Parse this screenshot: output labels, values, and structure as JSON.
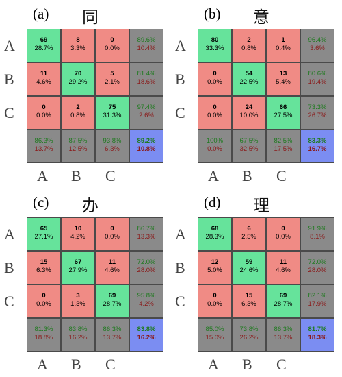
{
  "row_labels": [
    "A",
    "B",
    "C"
  ],
  "col_labels": [
    "A",
    "B",
    "C"
  ],
  "colors": {
    "correct": "#66e39b",
    "incorrect": "#f08b85",
    "summary": "#8a8a8a",
    "overall": "#7b8df2",
    "green_text": "#1f7a1f",
    "red_text": "#8a1a1a"
  },
  "chart_data": [
    {
      "type": "table",
      "panel_label": "(a)",
      "character": "同",
      "cells": [
        [
          {
            "n": "69",
            "p": "28.7%"
          },
          {
            "n": "8",
            "p": "3.3%"
          },
          {
            "n": "0",
            "p": "0.0%"
          },
          {
            "top": "89.6%",
            "bot": "10.4%"
          }
        ],
        [
          {
            "n": "11",
            "p": "4.6%"
          },
          {
            "n": "70",
            "p": "29.2%"
          },
          {
            "n": "5",
            "p": "2.1%"
          },
          {
            "top": "81.4%",
            "bot": "18.6%"
          }
        ],
        [
          {
            "n": "0",
            "p": "0.0%"
          },
          {
            "n": "2",
            "p": "0.8%"
          },
          {
            "n": "75",
            "p": "31.3%"
          },
          {
            "top": "97.4%",
            "bot": "2.6%"
          }
        ],
        [
          {
            "top": "86.3%",
            "bot": "13.7%"
          },
          {
            "top": "87.5%",
            "bot": "12.5%"
          },
          {
            "top": "93.8%",
            "bot": "6.3%"
          },
          {
            "top": "89.2%",
            "bot": "10.8%"
          }
        ]
      ]
    },
    {
      "type": "table",
      "panel_label": "(b)",
      "character": "意",
      "cells": [
        [
          {
            "n": "80",
            "p": "33.3%"
          },
          {
            "n": "2",
            "p": "0.8%"
          },
          {
            "n": "1",
            "p": "0.4%"
          },
          {
            "top": "96.4%",
            "bot": "3.6%"
          }
        ],
        [
          {
            "n": "0",
            "p": "0.0%"
          },
          {
            "n": "54",
            "p": "22.5%"
          },
          {
            "n": "13",
            "p": "5.4%"
          },
          {
            "top": "80.6%",
            "bot": "19.4%"
          }
        ],
        [
          {
            "n": "0",
            "p": "0.0%"
          },
          {
            "n": "24",
            "p": "10.0%"
          },
          {
            "n": "66",
            "p": "27.5%"
          },
          {
            "top": "73.3%",
            "bot": "26.7%"
          }
        ],
        [
          {
            "top": "100%",
            "bot": "0.0%"
          },
          {
            "top": "67.5%",
            "bot": "32.5%"
          },
          {
            "top": "82.5%",
            "bot": "17.5%"
          },
          {
            "top": "83.3%",
            "bot": "16.7%"
          }
        ]
      ]
    },
    {
      "type": "table",
      "panel_label": "(c)",
      "character": "办",
      "cells": [
        [
          {
            "n": "65",
            "p": "27.1%"
          },
          {
            "n": "10",
            "p": "4.2%"
          },
          {
            "n": "0",
            "p": "0.0%"
          },
          {
            "top": "86.7%",
            "bot": "13.3%"
          }
        ],
        [
          {
            "n": "15",
            "p": "6.3%"
          },
          {
            "n": "67",
            "p": "27.9%"
          },
          {
            "n": "11",
            "p": "4.6%"
          },
          {
            "top": "72.0%",
            "bot": "28.0%"
          }
        ],
        [
          {
            "n": "0",
            "p": "0.0%"
          },
          {
            "n": "3",
            "p": "1.3%"
          },
          {
            "n": "69",
            "p": "28.7%"
          },
          {
            "top": "95.8%",
            "bot": "4.2%"
          }
        ],
        [
          {
            "top": "81.3%",
            "bot": "18.8%"
          },
          {
            "top": "83.8%",
            "bot": "16.2%"
          },
          {
            "top": "86.3%",
            "bot": "13.7%"
          },
          {
            "top": "83.8%",
            "bot": "16.2%"
          }
        ]
      ]
    },
    {
      "type": "table",
      "panel_label": "(d)",
      "character": "理",
      "cells": [
        [
          {
            "n": "68",
            "p": "28.3%"
          },
          {
            "n": "6",
            "p": "2.5%"
          },
          {
            "n": "0",
            "p": "0.0%"
          },
          {
            "top": "91.9%",
            "bot": "8.1%"
          }
        ],
        [
          {
            "n": "12",
            "p": "5.0%"
          },
          {
            "n": "59",
            "p": "24.6%"
          },
          {
            "n": "11",
            "p": "4.6%"
          },
          {
            "top": "72.0%",
            "bot": "28.0%"
          }
        ],
        [
          {
            "n": "0",
            "p": "0.0%"
          },
          {
            "n": "15",
            "p": "6.3%"
          },
          {
            "n": "69",
            "p": "28.7%"
          },
          {
            "top": "82.1%",
            "bot": "17.9%"
          }
        ],
        [
          {
            "top": "85.0%",
            "bot": "15.0%"
          },
          {
            "top": "73.8%",
            "bot": "26.2%"
          },
          {
            "top": "86.3%",
            "bot": "13.7%"
          },
          {
            "top": "81.7%",
            "bot": "18.3%"
          }
        ]
      ]
    }
  ]
}
